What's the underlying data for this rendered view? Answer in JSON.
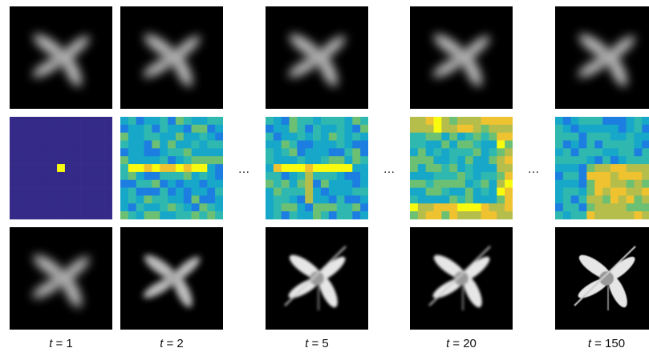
{
  "columns": [
    {
      "symbol": "t",
      "rest": "= 1"
    },
    {
      "symbol": "t",
      "rest": "= 2"
    },
    {
      "symbol": "t",
      "rest": "= 5"
    },
    {
      "symbol": "t",
      "rest": "= 20"
    },
    {
      "symbol": "t",
      "rest": "= 150"
    }
  ],
  "ellipses": [
    "…",
    "…",
    "…"
  ]
}
